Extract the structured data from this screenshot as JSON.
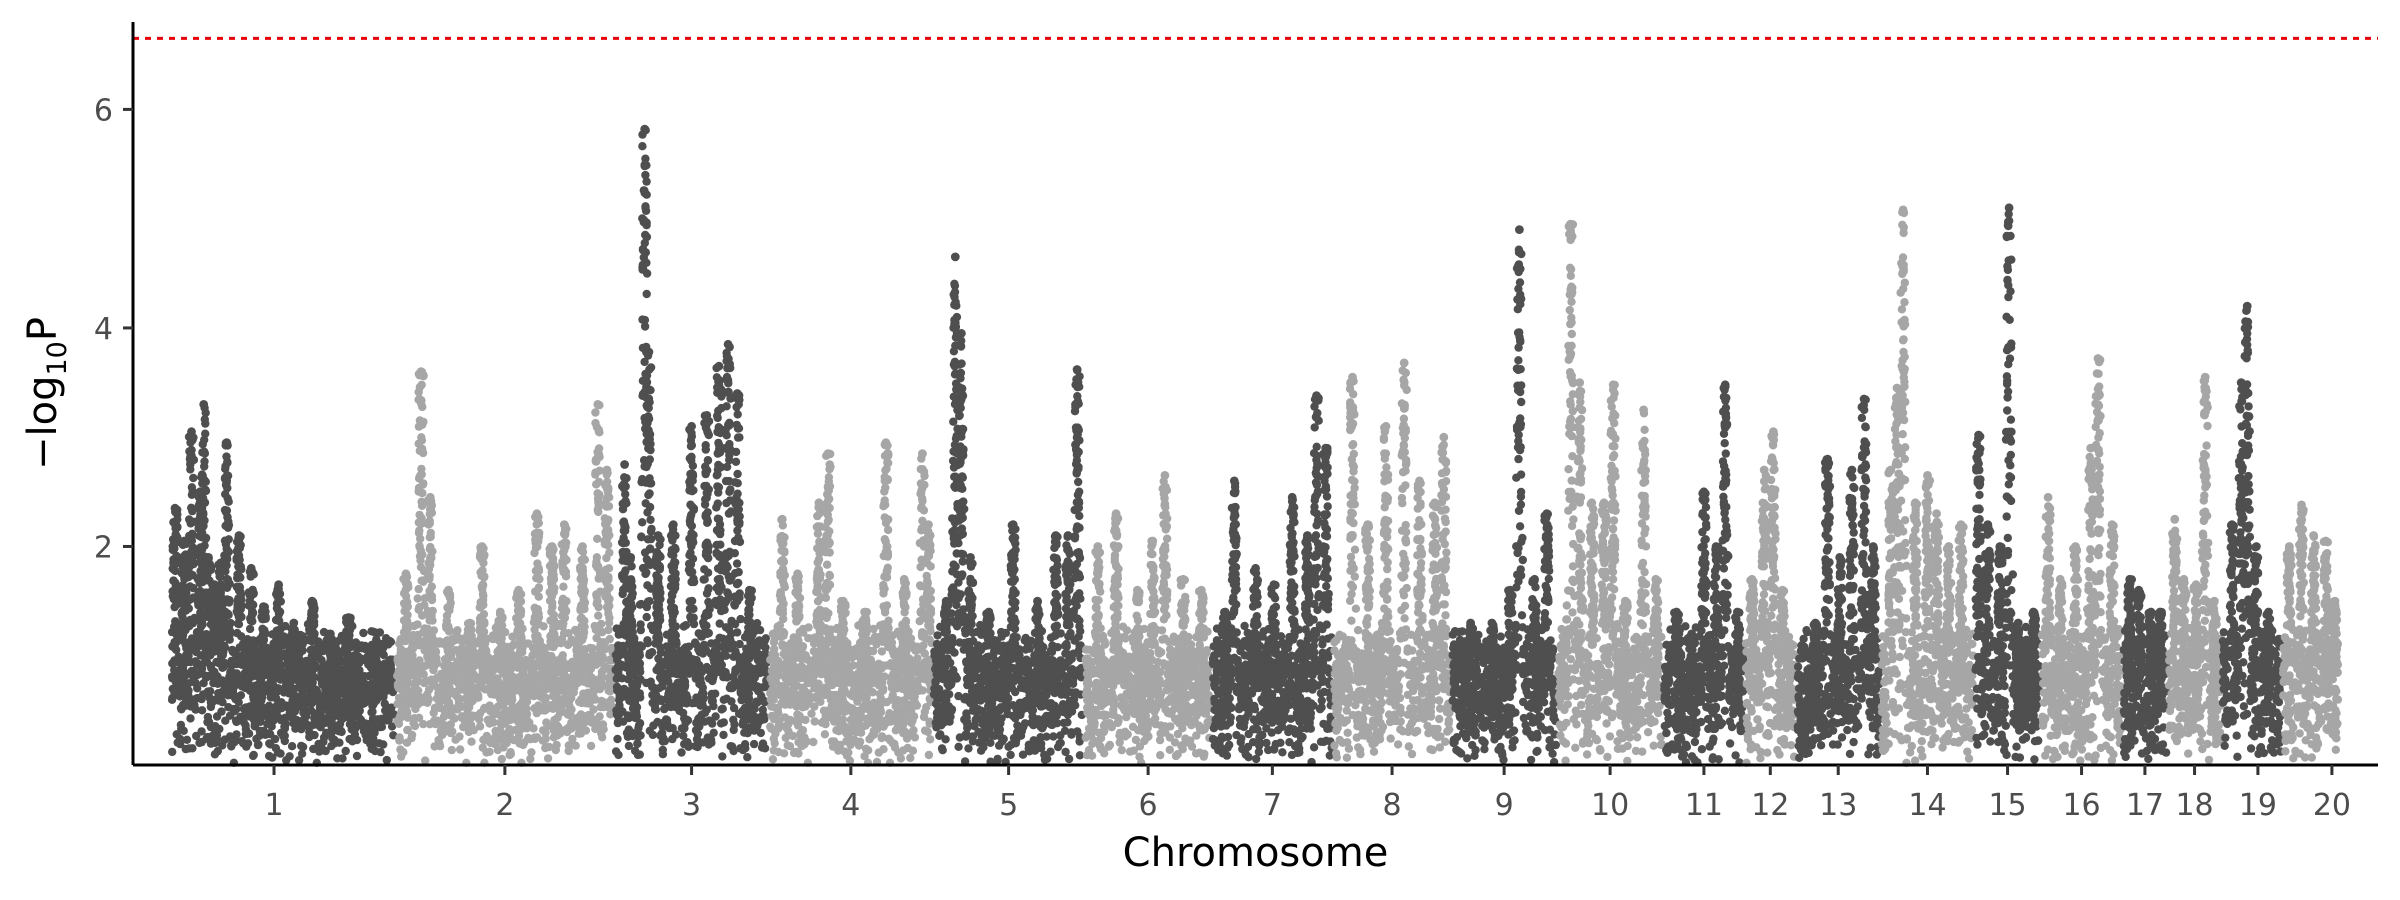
{
  "chart_data": {
    "type": "scatter",
    "subtype": "manhattan",
    "title": "",
    "xlabel": "Chromosome",
    "ylabel": {
      "prefix": "−log",
      "subscript": "10",
      "suffix": "P"
    },
    "ylim": [
      0,
      6.8
    ],
    "yticks": [
      2,
      4,
      6
    ],
    "grid": false,
    "legend": "none",
    "significance_threshold": {
      "y": 6.65,
      "color": "#e8000b",
      "style": "dashed"
    },
    "colors": {
      "odd": "#4f4f4f",
      "even": "#a6a6a6"
    },
    "x_label_offsets": {
      "1": -0.15,
      "19": 0.1,
      "20": 0.35
    },
    "chromosomes": [
      {
        "label": "1",
        "length": 3.65
      },
      {
        "label": "2",
        "length": 3.55
      },
      {
        "label": "3",
        "length": 2.5
      },
      {
        "label": "4",
        "length": 2.65
      },
      {
        "label": "5",
        "length": 2.45
      },
      {
        "label": "6",
        "length": 2.05
      },
      {
        "label": "7",
        "length": 1.95
      },
      {
        "label": "8",
        "length": 1.9
      },
      {
        "label": "9",
        "length": 1.7
      },
      {
        "label": "10",
        "length": 1.7
      },
      {
        "label": "11",
        "length": 1.3
      },
      {
        "label": "12",
        "length": 0.8
      },
      {
        "label": "13",
        "length": 1.35
      },
      {
        "label": "14",
        "length": 1.5
      },
      {
        "label": "15",
        "length": 1.05
      },
      {
        "label": "16",
        "length": 1.3
      },
      {
        "label": "17",
        "length": 0.7
      },
      {
        "label": "18",
        "length": 0.85
      },
      {
        "label": "19",
        "length": 0.95
      },
      {
        "label": "20",
        "length": 0.9
      }
    ],
    "peaks": [
      {
        "chr": "1",
        "pos": 0.05,
        "y": 2.35
      },
      {
        "chr": "1",
        "pos": 0.2,
        "y": 2.05
      },
      {
        "chr": "1",
        "pos": 0.32,
        "y": 3.05
      },
      {
        "chr": "1",
        "pos": 0.46,
        "y": 2.5
      },
      {
        "chr": "1",
        "pos": 0.52,
        "y": 3.3
      },
      {
        "chr": "1",
        "pos": 0.6,
        "y": 1.9
      },
      {
        "chr": "1",
        "pos": 0.7,
        "y": 1.65
      },
      {
        "chr": "1",
        "pos": 0.8,
        "y": 1.85
      },
      {
        "chr": "1",
        "pos": 0.9,
        "y": 2.95
      },
      {
        "chr": "1",
        "pos": 1.1,
        "y": 2.1
      },
      {
        "chr": "1",
        "pos": 1.3,
        "y": 1.8
      },
      {
        "chr": "1",
        "pos": 1.5,
        "y": 1.45
      },
      {
        "chr": "1",
        "pos": 1.75,
        "y": 1.65
      },
      {
        "chr": "1",
        "pos": 2.0,
        "y": 1.3
      },
      {
        "chr": "1",
        "pos": 2.3,
        "y": 1.5
      },
      {
        "chr": "1",
        "pos": 2.6,
        "y": 1.2
      },
      {
        "chr": "1",
        "pos": 2.9,
        "y": 1.35
      },
      {
        "chr": "1",
        "pos": 3.3,
        "y": 1.1
      },
      {
        "chr": "2",
        "pos": 0.15,
        "y": 1.75
      },
      {
        "chr": "2",
        "pos": 0.4,
        "y": 3.6
      },
      {
        "chr": "2",
        "pos": 0.55,
        "y": 2.45
      },
      {
        "chr": "2",
        "pos": 0.85,
        "y": 1.6
      },
      {
        "chr": "2",
        "pos": 1.2,
        "y": 1.3
      },
      {
        "chr": "2",
        "pos": 1.4,
        "y": 2.0
      },
      {
        "chr": "2",
        "pos": 1.7,
        "y": 1.4
      },
      {
        "chr": "2",
        "pos": 2.0,
        "y": 1.6
      },
      {
        "chr": "2",
        "pos": 2.3,
        "y": 2.3
      },
      {
        "chr": "2",
        "pos": 2.55,
        "y": 2.0
      },
      {
        "chr": "2",
        "pos": 2.75,
        "y": 2.2
      },
      {
        "chr": "2",
        "pos": 3.05,
        "y": 2.0
      },
      {
        "chr": "2",
        "pos": 3.3,
        "y": 3.3
      },
      {
        "chr": "2",
        "pos": 3.45,
        "y": 2.7
      },
      {
        "chr": "3",
        "pos": 0.15,
        "y": 2.75
      },
      {
        "chr": "3",
        "pos": 0.25,
        "y": 1.9
      },
      {
        "chr": "3",
        "pos": 0.48,
        "y": 5.82
      },
      {
        "chr": "3",
        "pos": 0.55,
        "y": 3.78
      },
      {
        "chr": "3",
        "pos": 0.7,
        "y": 2.1
      },
      {
        "chr": "3",
        "pos": 0.95,
        "y": 2.2
      },
      {
        "chr": "3",
        "pos": 1.25,
        "y": 3.1
      },
      {
        "chr": "3",
        "pos": 1.5,
        "y": 3.2
      },
      {
        "chr": "3",
        "pos": 1.7,
        "y": 3.65
      },
      {
        "chr": "3",
        "pos": 1.85,
        "y": 3.85
      },
      {
        "chr": "3",
        "pos": 2.0,
        "y": 3.4
      },
      {
        "chr": "3",
        "pos": 2.2,
        "y": 1.6
      },
      {
        "chr": "4",
        "pos": 0.2,
        "y": 2.25
      },
      {
        "chr": "4",
        "pos": 0.45,
        "y": 1.75
      },
      {
        "chr": "4",
        "pos": 0.8,
        "y": 2.4
      },
      {
        "chr": "4",
        "pos": 0.95,
        "y": 2.85
      },
      {
        "chr": "4",
        "pos": 1.2,
        "y": 1.5
      },
      {
        "chr": "4",
        "pos": 1.55,
        "y": 1.4
      },
      {
        "chr": "4",
        "pos": 1.9,
        "y": 2.95
      },
      {
        "chr": "4",
        "pos": 2.2,
        "y": 1.7
      },
      {
        "chr": "4",
        "pos": 2.5,
        "y": 2.85
      },
      {
        "chr": "4",
        "pos": 2.6,
        "y": 2.2
      },
      {
        "chr": "5",
        "pos": 0.2,
        "y": 1.5
      },
      {
        "chr": "5",
        "pos": 0.35,
        "y": 4.65
      },
      {
        "chr": "5",
        "pos": 0.45,
        "y": 3.95
      },
      {
        "chr": "5",
        "pos": 0.6,
        "y": 1.9
      },
      {
        "chr": "5",
        "pos": 0.9,
        "y": 1.4
      },
      {
        "chr": "5",
        "pos": 1.3,
        "y": 2.2
      },
      {
        "chr": "5",
        "pos": 1.7,
        "y": 1.5
      },
      {
        "chr": "5",
        "pos": 2.0,
        "y": 2.1
      },
      {
        "chr": "5",
        "pos": 2.2,
        "y": 2.1
      },
      {
        "chr": "5",
        "pos": 2.35,
        "y": 3.62
      },
      {
        "chr": "6",
        "pos": 0.2,
        "y": 2.0
      },
      {
        "chr": "6",
        "pos": 0.5,
        "y": 2.3
      },
      {
        "chr": "6",
        "pos": 0.85,
        "y": 1.6
      },
      {
        "chr": "6",
        "pos": 1.1,
        "y": 2.05
      },
      {
        "chr": "6",
        "pos": 1.3,
        "y": 2.65
      },
      {
        "chr": "6",
        "pos": 1.6,
        "y": 1.7
      },
      {
        "chr": "6",
        "pos": 1.9,
        "y": 1.6
      },
      {
        "chr": "7",
        "pos": 0.2,
        "y": 1.4
      },
      {
        "chr": "7",
        "pos": 0.35,
        "y": 2.6
      },
      {
        "chr": "7",
        "pos": 0.7,
        "y": 1.8
      },
      {
        "chr": "7",
        "pos": 1.0,
        "y": 1.65
      },
      {
        "chr": "7",
        "pos": 1.3,
        "y": 2.45
      },
      {
        "chr": "7",
        "pos": 1.55,
        "y": 2.1
      },
      {
        "chr": "7",
        "pos": 1.7,
        "y": 3.38
      },
      {
        "chr": "7",
        "pos": 1.85,
        "y": 2.9
      },
      {
        "chr": "8",
        "pos": 0.3,
        "y": 3.55
      },
      {
        "chr": "8",
        "pos": 0.55,
        "y": 2.2
      },
      {
        "chr": "8",
        "pos": 0.85,
        "y": 3.1
      },
      {
        "chr": "8",
        "pos": 1.15,
        "y": 3.68
      },
      {
        "chr": "8",
        "pos": 1.4,
        "y": 2.6
      },
      {
        "chr": "8",
        "pos": 1.65,
        "y": 2.4
      },
      {
        "chr": "8",
        "pos": 1.8,
        "y": 3.0
      },
      {
        "chr": "9",
        "pos": 0.3,
        "y": 1.3
      },
      {
        "chr": "9",
        "pos": 0.65,
        "y": 1.3
      },
      {
        "chr": "9",
        "pos": 0.95,
        "y": 1.6
      },
      {
        "chr": "9",
        "pos": 1.1,
        "y": 4.9
      },
      {
        "chr": "9",
        "pos": 1.35,
        "y": 1.7
      },
      {
        "chr": "9",
        "pos": 1.55,
        "y": 2.3
      },
      {
        "chr": "10",
        "pos": 0.2,
        "y": 4.95
      },
      {
        "chr": "10",
        "pos": 0.35,
        "y": 3.5
      },
      {
        "chr": "10",
        "pos": 0.55,
        "y": 2.4
      },
      {
        "chr": "10",
        "pos": 0.75,
        "y": 2.4
      },
      {
        "chr": "10",
        "pos": 0.9,
        "y": 3.48
      },
      {
        "chr": "10",
        "pos": 1.1,
        "y": 1.5
      },
      {
        "chr": "10",
        "pos": 1.4,
        "y": 3.25
      },
      {
        "chr": "10",
        "pos": 1.6,
        "y": 1.7
      },
      {
        "chr": "11",
        "pos": 0.2,
        "y": 1.4
      },
      {
        "chr": "11",
        "pos": 0.45,
        "y": 1.2
      },
      {
        "chr": "11",
        "pos": 0.65,
        "y": 2.5
      },
      {
        "chr": "11",
        "pos": 0.85,
        "y": 2.0
      },
      {
        "chr": "11",
        "pos": 1.0,
        "y": 3.48
      },
      {
        "chr": "11",
        "pos": 1.2,
        "y": 1.4
      },
      {
        "chr": "12",
        "pos": 0.1,
        "y": 1.7
      },
      {
        "chr": "12",
        "pos": 0.3,
        "y": 2.7
      },
      {
        "chr": "12",
        "pos": 0.45,
        "y": 3.05
      },
      {
        "chr": "12",
        "pos": 0.6,
        "y": 1.6
      },
      {
        "chr": "13",
        "pos": 0.1,
        "y": 0.5
      },
      {
        "chr": "13",
        "pos": 0.3,
        "y": 1.3
      },
      {
        "chr": "13",
        "pos": 0.5,
        "y": 2.8
      },
      {
        "chr": "13",
        "pos": 0.7,
        "y": 1.9
      },
      {
        "chr": "13",
        "pos": 0.9,
        "y": 2.7
      },
      {
        "chr": "13",
        "pos": 1.1,
        "y": 3.35
      },
      {
        "chr": "13",
        "pos": 1.25,
        "y": 2.0
      },
      {
        "chr": "14",
        "pos": 0.15,
        "y": 2.7
      },
      {
        "chr": "14",
        "pos": 0.25,
        "y": 3.45
      },
      {
        "chr": "14",
        "pos": 0.35,
        "y": 5.08
      },
      {
        "chr": "14",
        "pos": 0.55,
        "y": 2.4
      },
      {
        "chr": "14",
        "pos": 0.75,
        "y": 2.65
      },
      {
        "chr": "14",
        "pos": 0.9,
        "y": 2.3
      },
      {
        "chr": "14",
        "pos": 1.1,
        "y": 2.0
      },
      {
        "chr": "14",
        "pos": 1.3,
        "y": 2.2
      },
      {
        "chr": "15",
        "pos": 0.05,
        "y": 3.02
      },
      {
        "chr": "15",
        "pos": 0.2,
        "y": 2.2
      },
      {
        "chr": "15",
        "pos": 0.4,
        "y": 2.0
      },
      {
        "chr": "15",
        "pos": 0.55,
        "y": 5.1
      },
      {
        "chr": "15",
        "pos": 0.7,
        "y": 1.3
      },
      {
        "chr": "15",
        "pos": 0.95,
        "y": 1.4
      },
      {
        "chr": "16",
        "pos": 0.1,
        "y": 2.45
      },
      {
        "chr": "16",
        "pos": 0.3,
        "y": 1.7
      },
      {
        "chr": "16",
        "pos": 0.55,
        "y": 2.0
      },
      {
        "chr": "16",
        "pos": 0.8,
        "y": 2.9
      },
      {
        "chr": "16",
        "pos": 0.92,
        "y": 3.72
      },
      {
        "chr": "16",
        "pos": 1.15,
        "y": 2.2
      },
      {
        "chr": "17",
        "pos": 0.1,
        "y": 1.7
      },
      {
        "chr": "17",
        "pos": 0.25,
        "y": 1.6
      },
      {
        "chr": "17",
        "pos": 0.45,
        "y": 1.4
      },
      {
        "chr": "17",
        "pos": 0.6,
        "y": 1.4
      },
      {
        "chr": "18",
        "pos": 0.1,
        "y": 2.25
      },
      {
        "chr": "18",
        "pos": 0.25,
        "y": 1.7
      },
      {
        "chr": "18",
        "pos": 0.45,
        "y": 1.65
      },
      {
        "chr": "18",
        "pos": 0.6,
        "y": 3.55
      },
      {
        "chr": "18",
        "pos": 0.75,
        "y": 1.5
      },
      {
        "chr": "19",
        "pos": 0.15,
        "y": 2.2
      },
      {
        "chr": "19",
        "pos": 0.3,
        "y": 3.5
      },
      {
        "chr": "19",
        "pos": 0.4,
        "y": 4.2
      },
      {
        "chr": "19",
        "pos": 0.55,
        "y": 2.0
      },
      {
        "chr": "19",
        "pos": 0.75,
        "y": 1.4
      },
      {
        "chr": "20",
        "pos": 0.1,
        "y": 2.0
      },
      {
        "chr": "20",
        "pos": 0.3,
        "y": 2.38
      },
      {
        "chr": "20",
        "pos": 0.5,
        "y": 2.1
      },
      {
        "chr": "20",
        "pos": 0.7,
        "y": 2.05
      },
      {
        "chr": "20",
        "pos": 0.85,
        "y": 1.5
      }
    ]
  }
}
